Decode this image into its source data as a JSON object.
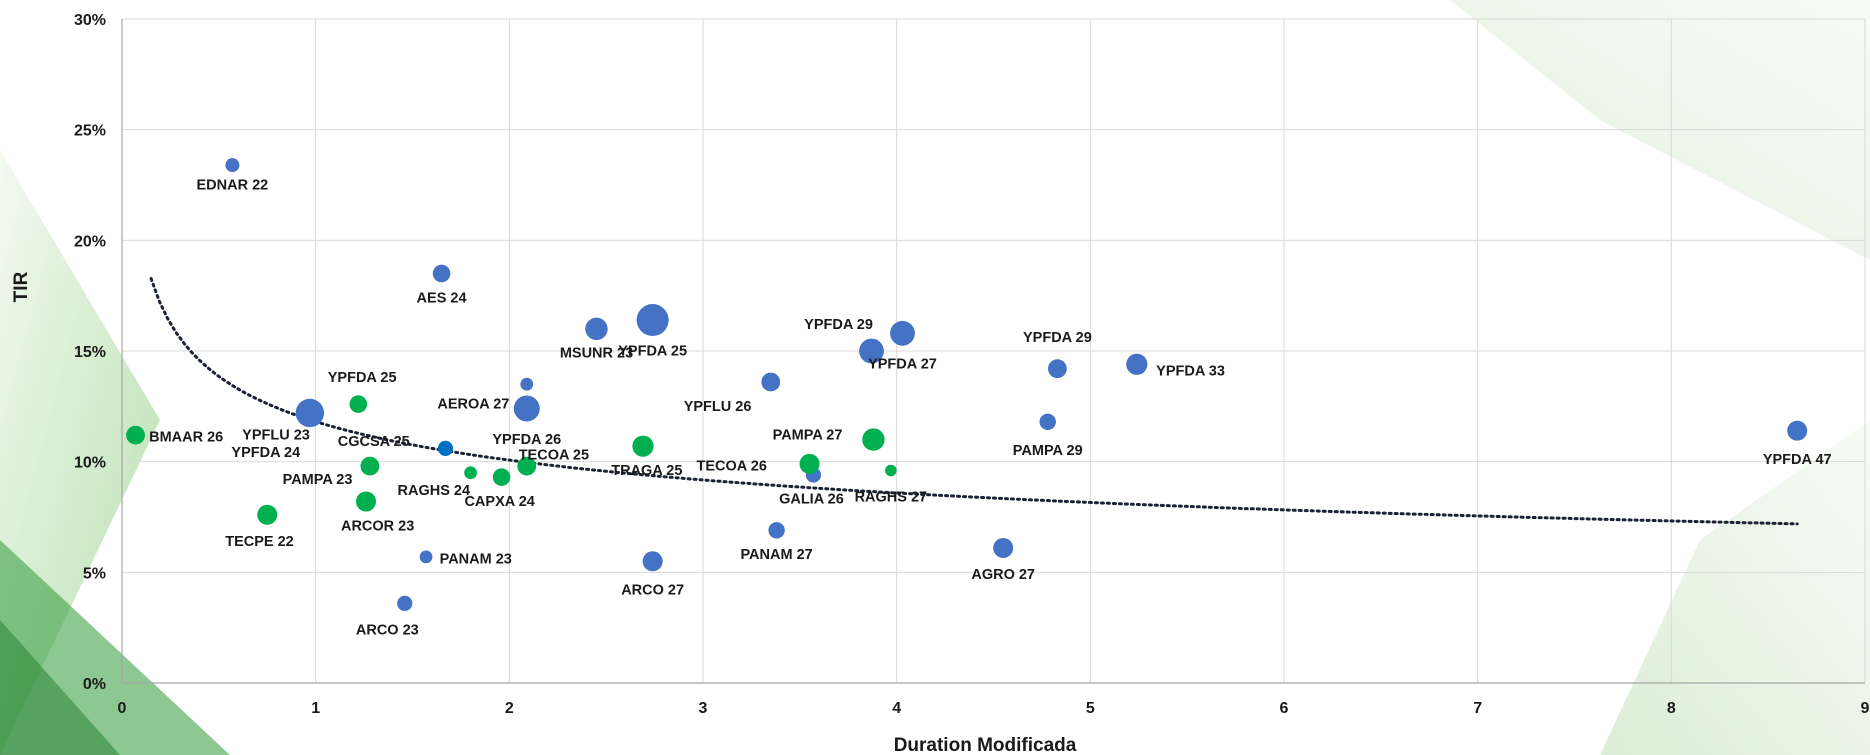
{
  "colors": {
    "corporate_blue": "#4472C4",
    "corporate_dark_blue": "#0070C0",
    "green": "#00B050",
    "trend": "#1a2233",
    "background_green": "#8fcf7a"
  },
  "chart_data": {
    "type": "scatter",
    "xlabel": "Duration Modificada",
    "ylabel": "TIR",
    "xlim": [
      0,
      9
    ],
    "ylim": [
      0,
      0.3
    ],
    "x_ticks": [
      "0",
      "1",
      "2",
      "3",
      "4",
      "5",
      "6",
      "7",
      "8",
      "9"
    ],
    "y_ticks": [
      "0%",
      "5%",
      "10%",
      "15%",
      "20%",
      "25%",
      "30%"
    ],
    "grid": true,
    "trendline": {
      "type": "power",
      "style": "dotted",
      "a": 0.1181,
      "b": -0.23
    },
    "points": [
      {
        "label": "EDNAR 22",
        "x": 0.57,
        "y": 0.234,
        "color": "blue",
        "size": 0.25
      },
      {
        "label": "AES 24",
        "x": 1.65,
        "y": 0.185,
        "color": "blue",
        "size": 0.4
      },
      {
        "label": "MSUNR 23",
        "x": 2.45,
        "y": 0.16,
        "color": "blue",
        "size": 0.6
      },
      {
        "label": "YPFDA 25",
        "x": 2.74,
        "y": 0.164,
        "color": "blue",
        "size": 1.0
      },
      {
        "label": "YPFDA 29",
        "x": 3.87,
        "y": 0.15,
        "color": "blue",
        "size": 0.7
      },
      {
        "label": "YPFDA 27",
        "x": 4.03,
        "y": 0.158,
        "color": "blue",
        "size": 0.7
      },
      {
        "label": "YPFDA 29",
        "x": 4.83,
        "y": 0.142,
        "color": "blue",
        "size": 0.45
      },
      {
        "label": "YPFDA 33",
        "x": 5.24,
        "y": 0.144,
        "color": "blue",
        "size": 0.55
      },
      {
        "label": "YPFLU 26",
        "x": 3.35,
        "y": 0.136,
        "color": "blue",
        "size": 0.45
      },
      {
        "label": "AEROA 27",
        "x": 2.09,
        "y": 0.135,
        "color": "blue",
        "size": 0.2
      },
      {
        "label": "YPFDA 26",
        "x": 2.09,
        "y": 0.124,
        "color": "blue",
        "size": 0.75
      },
      {
        "label": "YPFLU 23",
        "x": 0.97,
        "y": 0.122,
        "color": "blue",
        "size": 0.85
      },
      {
        "label": "PAMPA 29",
        "x": 4.78,
        "y": 0.118,
        "color": "blue",
        "size": 0.35
      },
      {
        "label": "YPFDA 47",
        "x": 8.65,
        "y": 0.114,
        "color": "blue",
        "size": 0.5
      },
      {
        "label": "RAGHS 24",
        "x": 1.67,
        "y": 0.106,
        "color": "darkblue",
        "size": 0.3
      },
      {
        "label": "GALIA 26",
        "x": 3.57,
        "y": 0.094,
        "color": "blue",
        "size": 0.3
      },
      {
        "label": "PANAM 27",
        "x": 3.38,
        "y": 0.069,
        "color": "blue",
        "size": 0.35
      },
      {
        "label": "PANAM 23",
        "x": 1.57,
        "y": 0.057,
        "color": "blue",
        "size": 0.2
      },
      {
        "label": "ARCO 27",
        "x": 2.74,
        "y": 0.055,
        "color": "blue",
        "size": 0.5
      },
      {
        "label": "AGRO 27",
        "x": 4.55,
        "y": 0.061,
        "color": "blue",
        "size": 0.5
      },
      {
        "label": "ARCO 23",
        "x": 1.46,
        "y": 0.036,
        "color": "blue",
        "size": 0.3
      },
      {
        "label": "BMAAR 26",
        "x": 0.07,
        "y": 0.112,
        "color": "green",
        "size": 0.45
      },
      {
        "label": "YPFDA 25",
        "x": 1.22,
        "y": 0.126,
        "color": "green",
        "size": 0.4
      },
      {
        "label": "YPFDA 24",
        "x": 0.0,
        "y": 0.0,
        "color": "none",
        "size": 0
      },
      {
        "label": "CGCSA 25",
        "x": 1.28,
        "y": 0.098,
        "color": "green",
        "size": 0.45
      },
      {
        "label": "PAMPA 23",
        "x": 0.0,
        "y": 0.0,
        "color": "none",
        "size": 0
      },
      {
        "label": "ARCOR 23",
        "x": 1.26,
        "y": 0.082,
        "color": "green",
        "size": 0.5
      },
      {
        "label": "TECPE 22",
        "x": 0.75,
        "y": 0.076,
        "color": "green",
        "size": 0.5
      },
      {
        "label": "CAPXA 24",
        "x": 1.8,
        "y": 0.095,
        "color": "green",
        "size": 0.2
      },
      {
        "label": "TECOA 25",
        "x": 1.96,
        "y": 0.093,
        "color": "green",
        "size": 0.4
      },
      {
        "label": "TECOA 25b",
        "x": 2.09,
        "y": 0.098,
        "color": "green",
        "size": 0.45
      },
      {
        "label": "TRAGA 25",
        "x": 2.69,
        "y": 0.107,
        "color": "green",
        "size": 0.55
      },
      {
        "label": "TECOA 26",
        "x": 3.55,
        "y": 0.099,
        "color": "green",
        "size": 0.5
      },
      {
        "label": "PAMPA 27",
        "x": 3.88,
        "y": 0.11,
        "color": "green",
        "size": 0.6
      },
      {
        "label": "RAGHS 27",
        "x": 3.97,
        "y": 0.096,
        "color": "green",
        "size": 0.15
      }
    ],
    "labels": [
      {
        "text": "EDNAR 22",
        "x": 0.57,
        "y": 0.223,
        "anchor": "middle"
      },
      {
        "text": "AES 24",
        "x": 1.65,
        "y": 0.172,
        "anchor": "middle"
      },
      {
        "text": "MSUNR 23",
        "x": 2.45,
        "y": 0.147,
        "anchor": "middle"
      },
      {
        "text": "YPFDA 25",
        "x": 2.74,
        "y": 0.148,
        "anchor": "middle"
      },
      {
        "text": "YPFDA 29",
        "x": 3.7,
        "y": 0.16,
        "anchor": "middle"
      },
      {
        "text": "YPFDA 27",
        "x": 4.03,
        "y": 0.142,
        "anchor": "middle"
      },
      {
        "text": "YPFDA 29",
        "x": 4.83,
        "y": 0.154,
        "anchor": "middle"
      },
      {
        "text": "YPFDA 33",
        "x": 5.34,
        "y": 0.139,
        "anchor": "start"
      },
      {
        "text": "YPFLU 26",
        "x": 3.25,
        "y": 0.123,
        "anchor": "end"
      },
      {
        "text": "AEROA 27",
        "x": 2.0,
        "y": 0.124,
        "anchor": "end"
      },
      {
        "text": "YPFDA 26",
        "x": 2.09,
        "y": 0.108,
        "anchor": "middle"
      },
      {
        "text": "YPFLU 23",
        "x": 0.97,
        "y": 0.11,
        "anchor": "end"
      },
      {
        "text": "YPFDA 24",
        "x": 0.92,
        "y": 0.102,
        "anchor": "end"
      },
      {
        "text": "YPFDA 25",
        "x": 1.24,
        "y": 0.136,
        "anchor": "middle"
      },
      {
        "text": "BMAAR 26",
        "x": 0.14,
        "y": 0.109,
        "anchor": "start"
      },
      {
        "text": "CGCSA 25",
        "x": 1.3,
        "y": 0.107,
        "anchor": "middle"
      },
      {
        "text": "PAMPA 23",
        "x": 1.19,
        "y": 0.09,
        "anchor": "end"
      },
      {
        "text": "ARCOR 23",
        "x": 1.32,
        "y": 0.069,
        "anchor": "middle"
      },
      {
        "text": "TECPE 22",
        "x": 0.71,
        "y": 0.062,
        "anchor": "middle"
      },
      {
        "text": "RAGHS 24",
        "x": 1.61,
        "y": 0.085,
        "anchor": "middle"
      },
      {
        "text": "CAPXA 24",
        "x": 1.95,
        "y": 0.08,
        "anchor": "middle"
      },
      {
        "text": "TECOA 25",
        "x": 2.23,
        "y": 0.101,
        "anchor": "middle"
      },
      {
        "text": "TRAGA 25",
        "x": 2.71,
        "y": 0.094,
        "anchor": "middle"
      },
      {
        "text": "TECOA 26",
        "x": 3.33,
        "y": 0.096,
        "anchor": "end"
      },
      {
        "text": "PAMPA 27",
        "x": 3.72,
        "y": 0.11,
        "anchor": "end"
      },
      {
        "text": "GALIA 26",
        "x": 3.56,
        "y": 0.081,
        "anchor": "middle"
      },
      {
        "text": "RAGHS 27",
        "x": 3.97,
        "y": 0.082,
        "anchor": "middle"
      },
      {
        "text": "PAMPA 29",
        "x": 4.78,
        "y": 0.103,
        "anchor": "middle"
      },
      {
        "text": "YPFDA 47",
        "x": 8.65,
        "y": 0.099,
        "anchor": "middle"
      },
      {
        "text": "PANAM 27",
        "x": 3.38,
        "y": 0.056,
        "anchor": "middle"
      },
      {
        "text": "PANAM 23",
        "x": 1.64,
        "y": 0.054,
        "anchor": "start"
      },
      {
        "text": "ARCO 27",
        "x": 2.74,
        "y": 0.04,
        "anchor": "middle"
      },
      {
        "text": "AGRO 27",
        "x": 4.55,
        "y": 0.047,
        "anchor": "middle"
      },
      {
        "text": "ARCO 23",
        "x": 1.37,
        "y": 0.022,
        "anchor": "middle"
      }
    ]
  }
}
